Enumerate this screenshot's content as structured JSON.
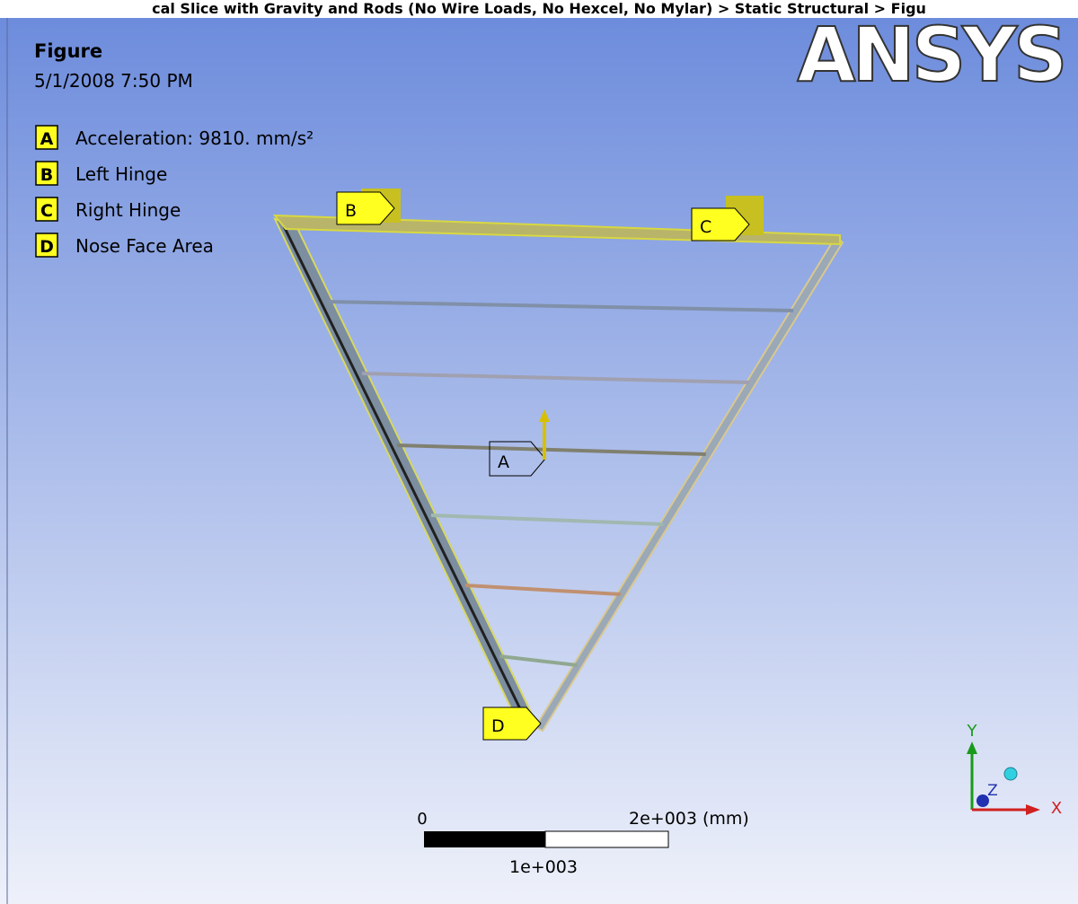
{
  "title_bar": "cal Slice with Gravity and Rods (No Wire Loads, No Hexcel, No Mylar) > Static Structural > Figu",
  "header": {
    "title": "Figure",
    "date": "5/1/2008 7:50 PM"
  },
  "logo": "ANSYS",
  "legend": [
    {
      "letter": "A",
      "label": "Acceleration: 9810. mm/s²"
    },
    {
      "letter": "B",
      "label": "Left Hinge"
    },
    {
      "letter": "C",
      "label": "Right Hinge"
    },
    {
      "letter": "D",
      "label": "Nose Face Area"
    }
  ],
  "tags": [
    "A",
    "B",
    "C",
    "D"
  ],
  "scale_bar": {
    "start": "0",
    "end": "2e+003 (mm)",
    "middle": "1e+003"
  },
  "triad": {
    "y": "Y",
    "z": "Z",
    "x": "X"
  }
}
